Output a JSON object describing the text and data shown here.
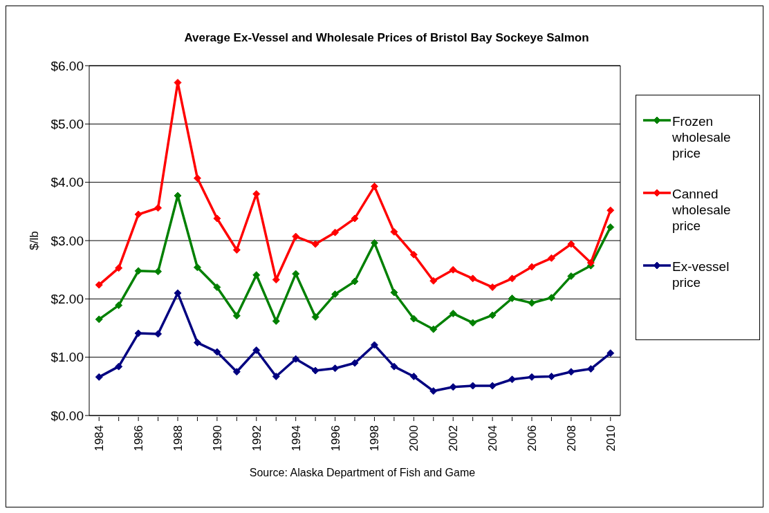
{
  "chart_data": {
    "type": "line",
    "title": "Average Ex-Vessel and Wholesale Prices of Bristol Bay Sockeye Salmon",
    "ylabel": "$/lb",
    "annotations": [
      "Source: Alaska Department of Fish and Game"
    ],
    "categories": [
      "1984",
      null,
      "1986",
      null,
      "1988",
      null,
      "1990",
      null,
      "1992",
      null,
      "1994",
      null,
      "1996",
      null,
      "1998",
      null,
      "2000",
      null,
      "2002",
      null,
      "2004",
      null,
      "2006",
      null,
      "2008",
      null,
      "2010"
    ],
    "series": [
      {
        "name": "Frozen wholesale price",
        "color": "#008000",
        "values": [
          1.65,
          1.89,
          2.48,
          2.47,
          3.77,
          2.54,
          2.2,
          1.71,
          2.41,
          1.62,
          2.43,
          1.69,
          2.08,
          2.3,
          2.96,
          2.11,
          1.66,
          1.48,
          1.75,
          1.59,
          1.72,
          2.01,
          1.93,
          2.02,
          2.39,
          2.57,
          3.23
        ]
      },
      {
        "name": "Canned wholesale price",
        "color": "#ff0000",
        "values": [
          2.24,
          2.53,
          3.45,
          3.56,
          5.71,
          4.07,
          3.38,
          2.84,
          3.8,
          2.33,
          3.07,
          2.94,
          3.14,
          3.38,
          3.93,
          3.15,
          2.76,
          2.31,
          2.5,
          2.35,
          2.2,
          2.35,
          2.55,
          2.7,
          2.94,
          2.62,
          3.52
        ]
      },
      {
        "name": "Ex-vessel price",
        "color": "#000080",
        "values": [
          0.66,
          0.84,
          1.41,
          1.4,
          2.1,
          1.25,
          1.09,
          0.75,
          1.12,
          0.67,
          0.97,
          0.77,
          0.81,
          0.9,
          1.21,
          0.84,
          0.67,
          0.42,
          0.49,
          0.51,
          0.51,
          0.62,
          0.66,
          0.67,
          0.75,
          0.8,
          1.07
        ]
      }
    ],
    "ylim": [
      0,
      6
    ],
    "yticks": [
      {
        "value": 0,
        "label": "$0.00"
      },
      {
        "value": 1,
        "label": "$1.00"
      },
      {
        "value": 2,
        "label": "$2.00"
      },
      {
        "value": 3,
        "label": "$3.00"
      },
      {
        "value": 4,
        "label": "$4.00"
      },
      {
        "value": 5,
        "label": "$5.00"
      },
      {
        "value": 6,
        "label": "$6.00"
      }
    ],
    "grid": "y",
    "legend": "right",
    "marker": "diamond",
    "line_style": "solid"
  }
}
